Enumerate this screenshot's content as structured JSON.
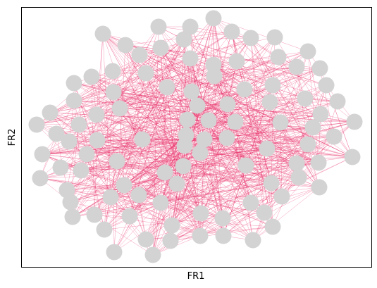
{
  "x_label": "FR1",
  "y_label": "FR2"
}
